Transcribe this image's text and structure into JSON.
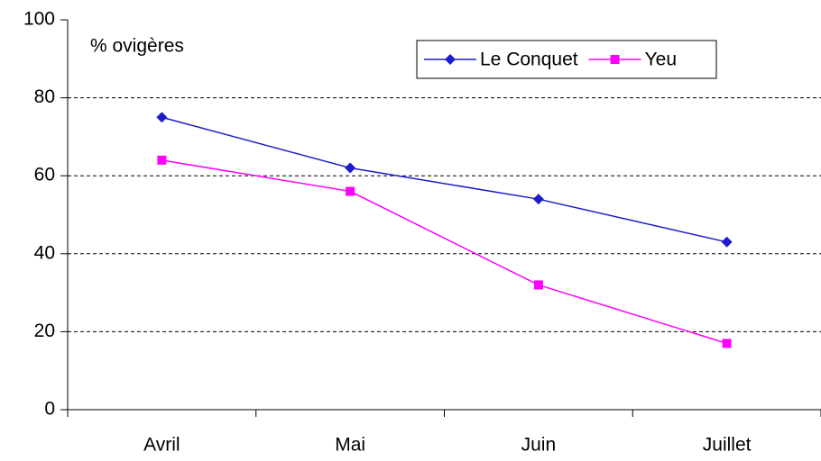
{
  "chart_data": {
    "type": "line",
    "annotation": "% ovigères",
    "categories": [
      "Avril",
      "Mai",
      "Juin",
      "Juillet"
    ],
    "series": [
      {
        "name": "Le Conquet",
        "color": "#1c1ccc",
        "marker": "diamond",
        "values": [
          75,
          62,
          54,
          43
        ]
      },
      {
        "name": "Yeu",
        "color": "#ff00ff",
        "marker": "square",
        "values": [
          64,
          56,
          32,
          17
        ]
      }
    ],
    "ylim": [
      0,
      100
    ],
    "yticks": [
      0,
      20,
      40,
      60,
      80,
      100
    ],
    "grid": true,
    "legend": "top-right"
  }
}
